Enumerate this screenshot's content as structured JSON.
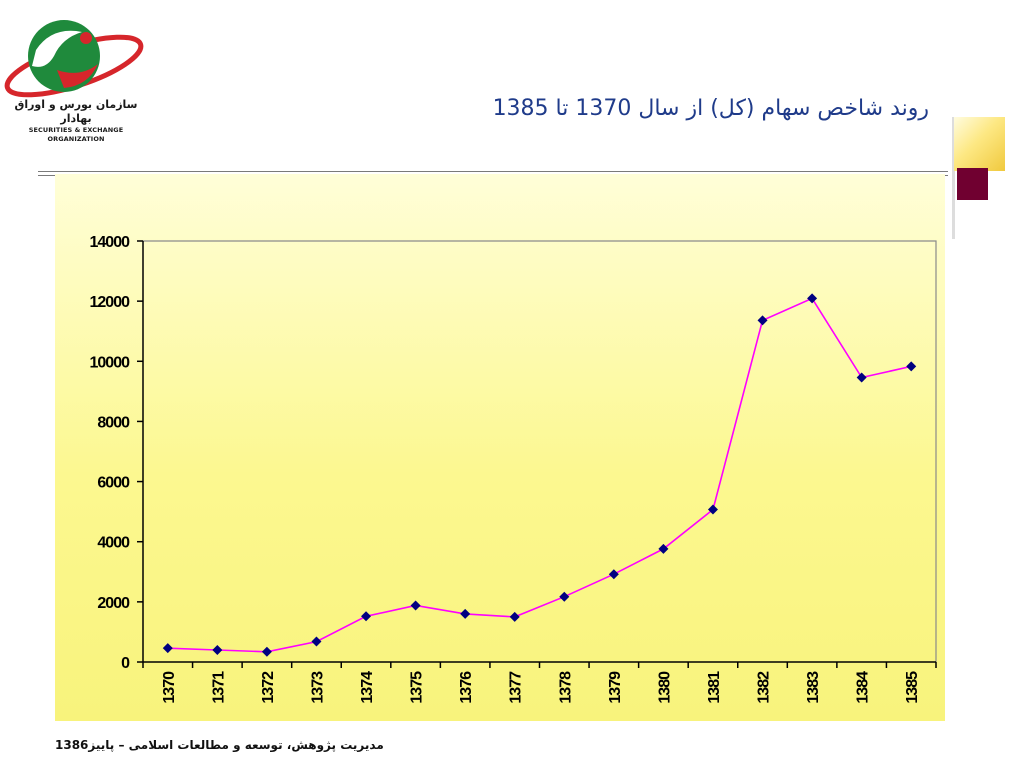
{
  "logo": {
    "name_fa": "سازمان بورس و اوراق بهادار",
    "name_en": "SECURITIES & EXCHANGE ORGANIZATION"
  },
  "slide": {
    "title": "روند شاخص سهام (کل) از سال 1370 تا 1385",
    "footer": "مدیریت پژوهش، توسعه و مطالعات اسلامی – پاییز1386"
  },
  "colors": {
    "line": "#ff00ff",
    "marker": "#000080",
    "title": "#1f3b8a",
    "accent_gold": "#f0c93e",
    "accent_maroon": "#700030"
  },
  "chart_data": {
    "type": "line",
    "categories": [
      "1370",
      "1371",
      "1372",
      "1373",
      "1374",
      "1375",
      "1376",
      "1377",
      "1378",
      "1379",
      "1380",
      "1381",
      "1382",
      "1383",
      "1384",
      "1385"
    ],
    "series": [
      {
        "values": [
          460,
          400,
          340,
          680,
          1520,
          1880,
          1600,
          1500,
          2170,
          2920,
          3760,
          5070,
          11360,
          12090,
          9460,
          9830
        ]
      }
    ],
    "y_ticks": [
      "0",
      "2000",
      "4000",
      "6000",
      "8000",
      "10000",
      "12000",
      "14000"
    ],
    "ylim": [
      0,
      14000
    ],
    "grid": false,
    "legend": "none"
  }
}
